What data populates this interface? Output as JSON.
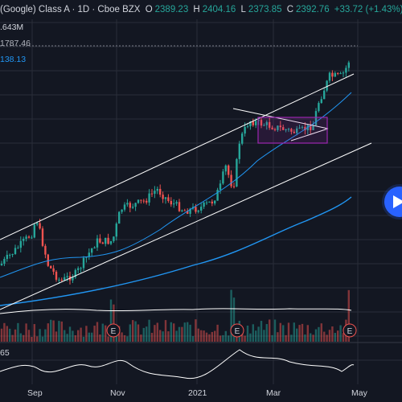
{
  "header": {
    "title": "(Google) Class A · 1D · Cboe BZX",
    "open_key": "O",
    "open_val": "2389.23",
    "high_key": "H",
    "high_val": "2404.16",
    "low_key": "L",
    "low_val": "2373.85",
    "close_key": "C",
    "close_val": "2392.76",
    "change": "+33.72 (+1.43%)"
  },
  "price_tags": {
    "ma_short": "1787.46",
    "ma_long": "138.13"
  },
  "volume_label": ".643M",
  "indicator_label": "65",
  "play_button": "play-icon",
  "earnings_marker": "E",
  "colors": {
    "background": "#131722",
    "up": "#26a69a",
    "down": "#ef5350",
    "ma_short": "#2196f3",
    "ma_long": "#2196f3",
    "volume_ma": "#ffffff",
    "channel": "#ffffff",
    "triangle_box": "#9c27b0",
    "grid": "#2a2e39"
  },
  "chart_data": {
    "type": "candlestick",
    "x_ticks": [
      "Sep",
      "Nov",
      "2021",
      "Mar",
      "May"
    ],
    "earnings_events": [
      "E",
      "E",
      "E"
    ]
  }
}
